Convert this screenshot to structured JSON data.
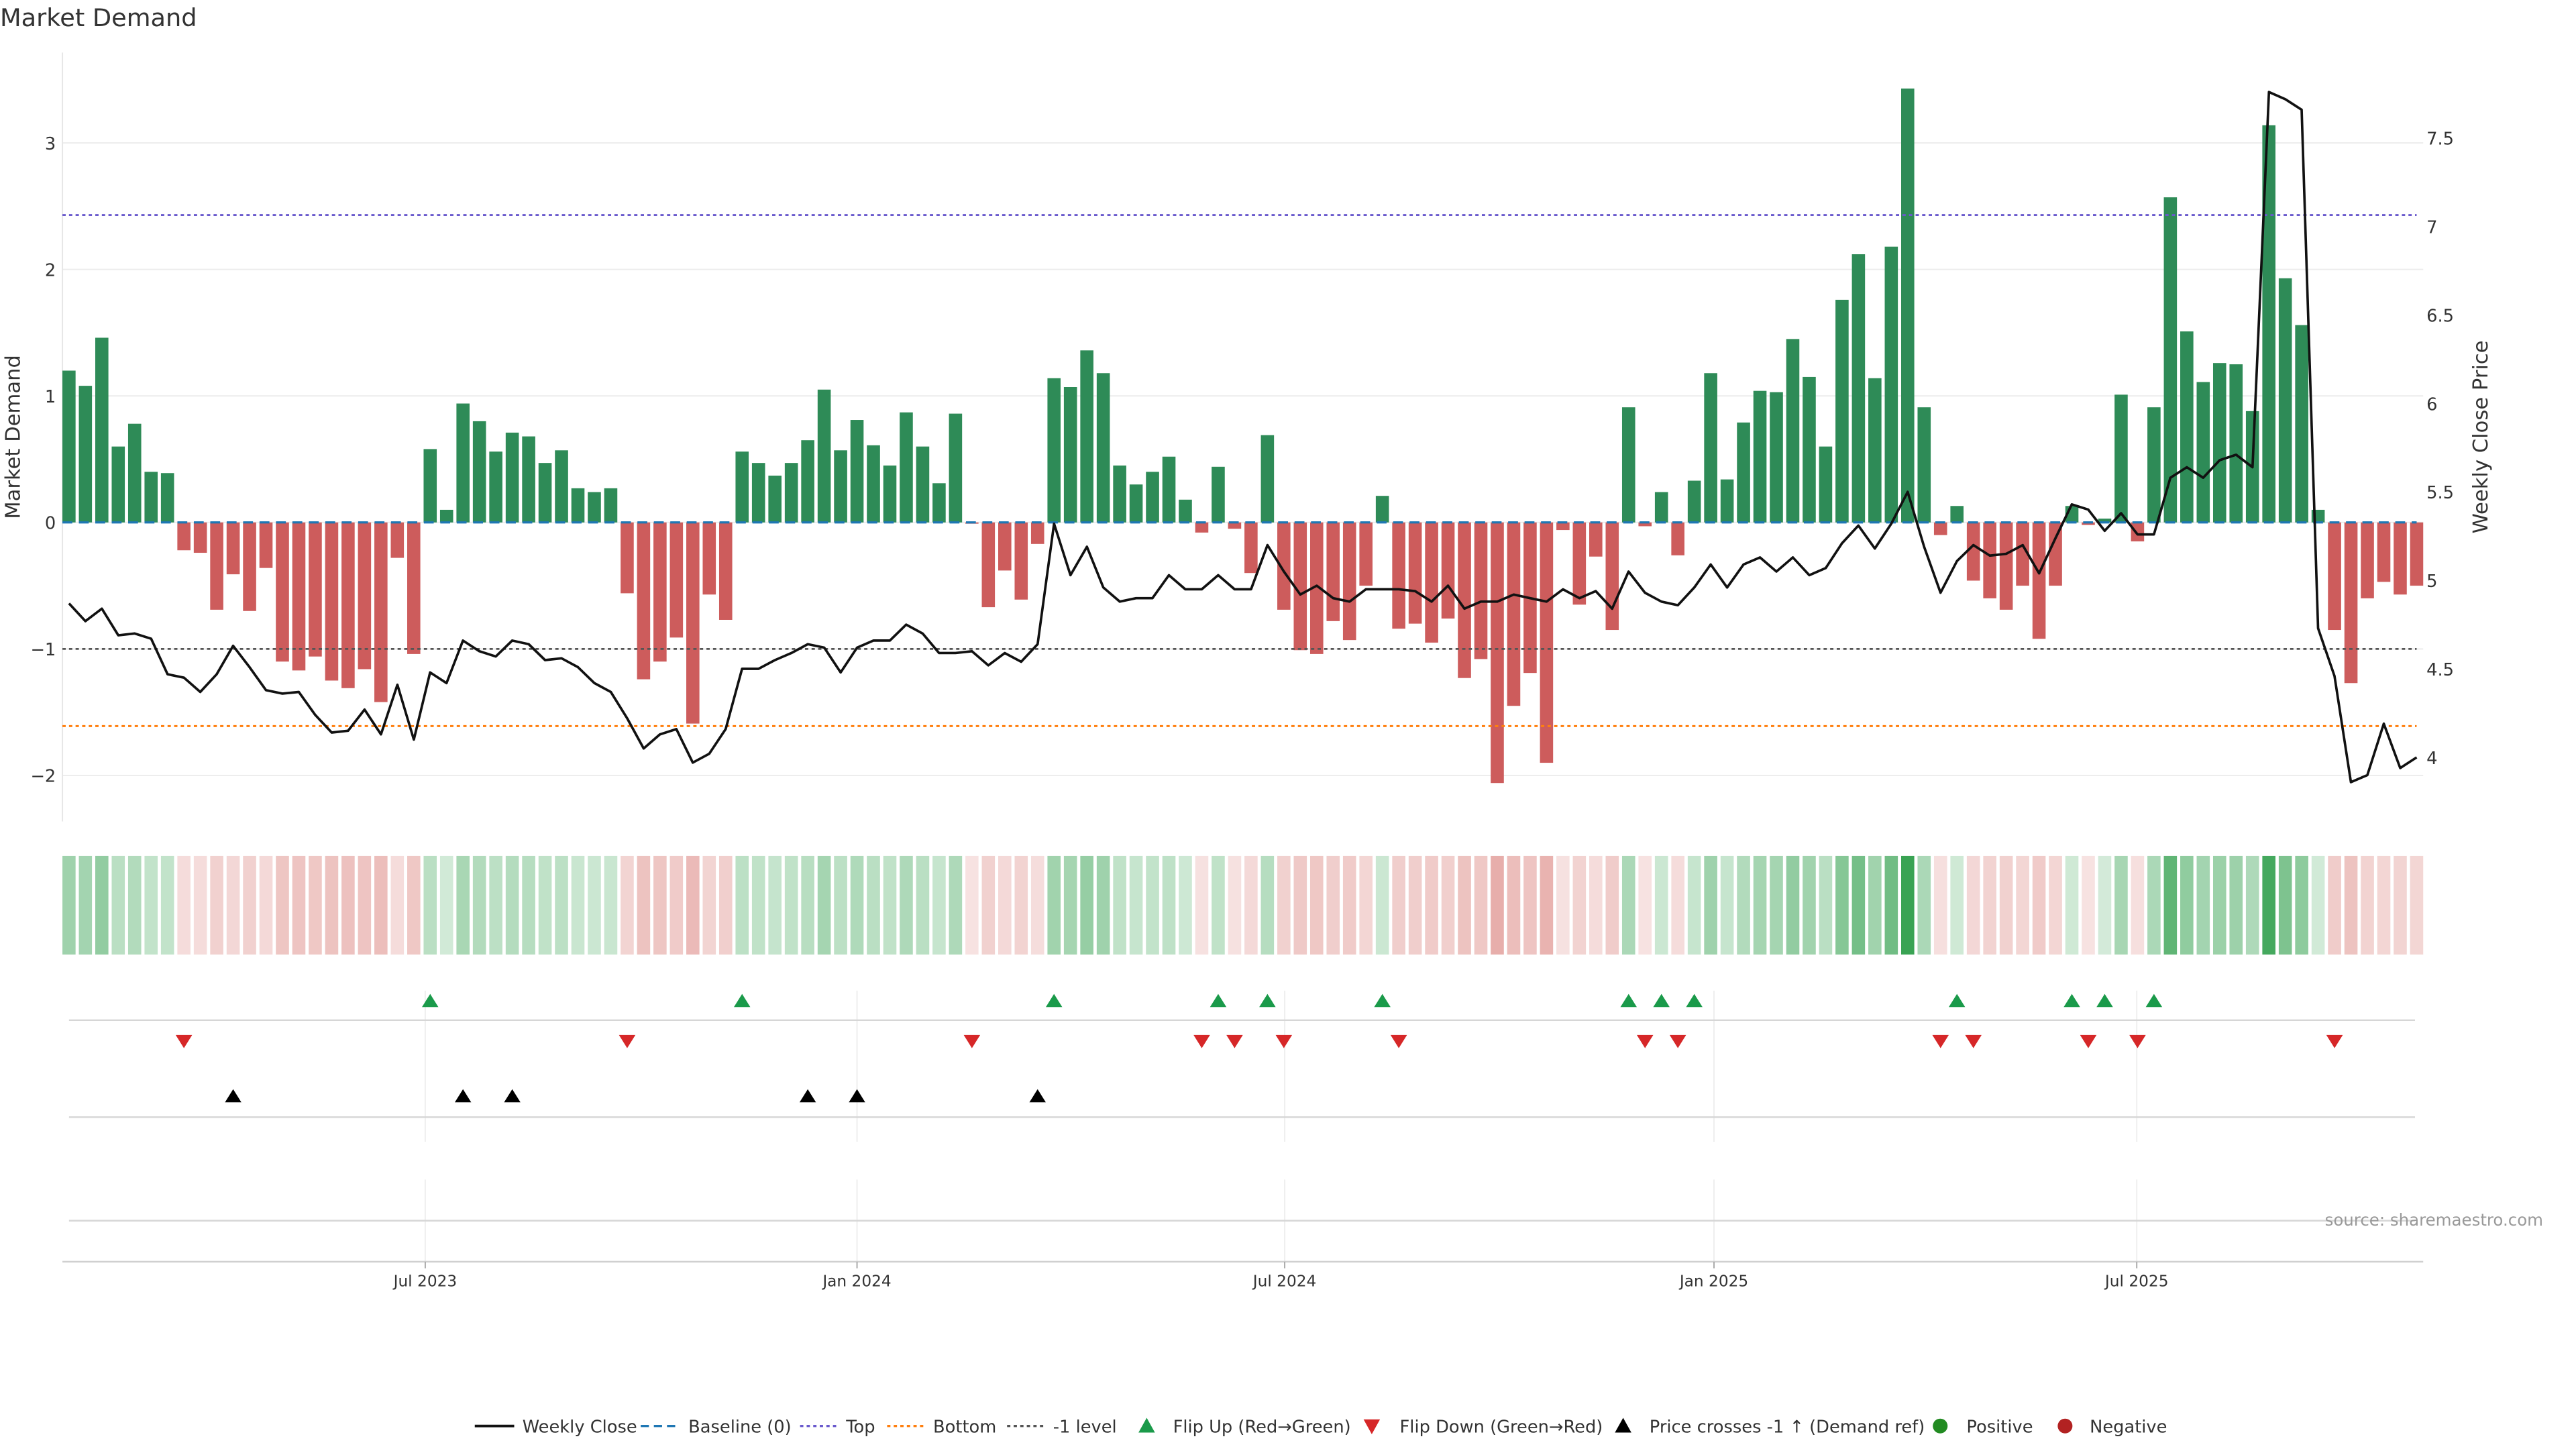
{
  "chart_data": {
    "type": "bar",
    "title": "Market Demand",
    "ylabel": "Market Demand",
    "y2label": "Weekly Close Price",
    "ylim": [
      -2.4,
      3.7
    ],
    "y2lim": [
      3.78,
      8.23
    ],
    "yticks": [
      {
        "v": 3,
        "label": "3"
      },
      {
        "v": 2,
        "label": "2"
      },
      {
        "v": 1,
        "label": "1"
      },
      {
        "v": 0,
        "label": "0"
      },
      {
        "v": -1,
        "label": "−1"
      },
      {
        "v": -2,
        "label": "−2"
      }
    ],
    "y2ticks": [
      {
        "v": 7.5,
        "label": "7.5"
      },
      {
        "v": 7,
        "label": "7"
      },
      {
        "v": 6.5,
        "label": "6.5"
      },
      {
        "v": 6,
        "label": "6"
      },
      {
        "v": 5.5,
        "label": "5.5"
      },
      {
        "v": 5,
        "label": "5"
      },
      {
        "v": 4.5,
        "label": "4.5"
      },
      {
        "v": 4,
        "label": "4"
      }
    ],
    "xticks": [
      {
        "index": 21.7,
        "label": "Jul 2023"
      },
      {
        "index": 48.0,
        "label": "Jan 2024"
      },
      {
        "index": 74.05,
        "label": "Jul 2024"
      },
      {
        "index": 100.2,
        "label": "Jan 2025"
      },
      {
        "index": 125.95,
        "label": "Jul 2025"
      }
    ],
    "levels": {
      "baseline": 0,
      "top": 2.43,
      "bottom": -1.61,
      "minus_one": -1
    },
    "demand": [
      1.2,
      1.08,
      1.46,
      0.6,
      0.78,
      0.4,
      0.39,
      -0.22,
      -0.24,
      -0.69,
      -0.41,
      -0.7,
      -0.36,
      -1.1,
      -1.17,
      -1.06,
      -1.25,
      -1.31,
      -1.16,
      -1.42,
      -0.28,
      -1.04,
      0.58,
      0.1,
      0.94,
      0.8,
      0.56,
      0.71,
      0.68,
      0.47,
      0.57,
      0.27,
      0.24,
      0.27,
      -0.56,
      -1.24,
      -1.1,
      -0.91,
      -1.59,
      -0.57,
      -0.77,
      0.56,
      0.47,
      0.37,
      0.47,
      0.65,
      1.05,
      0.57,
      0.81,
      0.61,
      0.45,
      0.87,
      0.6,
      0.31,
      0.86,
      -0.01,
      -0.67,
      -0.38,
      -0.61,
      -0.17,
      1.14,
      1.07,
      1.36,
      1.18,
      0.45,
      0.3,
      0.4,
      0.52,
      0.18,
      -0.08,
      0.44,
      -0.05,
      -0.4,
      0.69,
      -0.69,
      -1.01,
      -1.04,
      -0.78,
      -0.93,
      -0.5,
      0.21,
      -0.84,
      -0.8,
      -0.95,
      -0.76,
      -1.23,
      -1.08,
      -2.06,
      -1.45,
      -1.19,
      -1.9,
      -0.06,
      -0.65,
      -0.27,
      -0.85,
      0.91,
      -0.03,
      0.24,
      -0.26,
      0.33,
      1.18,
      0.34,
      0.79,
      1.04,
      1.03,
      1.45,
      1.15,
      0.6,
      1.76,
      2.12,
      1.14,
      2.18,
      3.43,
      0.91,
      -0.1,
      0.13,
      -0.46,
      -0.6,
      -0.69,
      -0.5,
      -0.92,
      -0.5,
      0.13,
      -0.02,
      0.03,
      1.01,
      -0.15,
      0.91,
      2.57,
      1.51,
      1.11,
      1.26,
      1.25,
      0.88,
      3.14,
      1.93,
      1.56,
      0.1,
      -0.85,
      -1.27,
      -0.6,
      -0.47,
      -0.57,
      -0.5
    ],
    "weekly_close": [
      4.87,
      4.77,
      4.84,
      4.69,
      4.7,
      4.67,
      4.47,
      4.45,
      4.37,
      4.47,
      4.63,
      4.51,
      4.38,
      4.36,
      4.37,
      4.24,
      4.14,
      4.15,
      4.27,
      4.13,
      4.41,
      4.1,
      4.48,
      4.42,
      4.66,
      4.6,
      4.57,
      4.66,
      4.64,
      4.55,
      4.56,
      4.51,
      4.42,
      4.37,
      4.22,
      4.05,
      4.13,
      4.16,
      3.97,
      4.02,
      4.16,
      4.5,
      4.5,
      4.55,
      4.59,
      4.64,
      4.62,
      4.48,
      4.62,
      4.66,
      4.66,
      4.75,
      4.7,
      4.59,
      4.59,
      4.6,
      4.52,
      4.59,
      4.54,
      4.64,
      5.32,
      5.03,
      5.19,
      4.96,
      4.88,
      4.9,
      4.9,
      5.03,
      4.95,
      4.95,
      5.03,
      4.95,
      4.95,
      5.2,
      5.05,
      4.92,
      4.97,
      4.9,
      4.88,
      4.95,
      4.95,
      4.95,
      4.94,
      4.88,
      4.97,
      4.84,
      4.88,
      4.88,
      4.92,
      4.9,
      4.88,
      4.95,
      4.9,
      4.94,
      4.84,
      5.05,
      4.93,
      4.88,
      4.86,
      4.96,
      5.09,
      4.96,
      5.09,
      5.13,
      5.05,
      5.13,
      5.03,
      5.07,
      5.21,
      5.31,
      5.18,
      5.32,
      5.5,
      5.19,
      4.93,
      5.11,
      5.2,
      5.14,
      5.15,
      5.2,
      5.04,
      5.24,
      5.43,
      5.4,
      5.28,
      5.38,
      5.26,
      5.26,
      5.58,
      5.64,
      5.58,
      5.68,
      5.71,
      5.64,
      7.76,
      7.72,
      7.66,
      4.73,
      4.46,
      3.86,
      3.9,
      4.19,
      3.94,
      4.0
    ],
    "flip_up_indices": [
      22,
      41,
      60,
      70,
      73,
      80,
      95,
      97,
      99,
      115,
      122,
      124,
      127
    ],
    "flip_down_indices": [
      7,
      34,
      55,
      69,
      71,
      74,
      81,
      96,
      98,
      114,
      116,
      123,
      126,
      138
    ],
    "price_cross_up_indices": [
      10,
      24,
      27,
      45,
      48,
      59
    ],
    "legend": [
      {
        "key": "weekly_close",
        "label": "Weekly Close"
      },
      {
        "key": "baseline",
        "label": "Baseline (0)"
      },
      {
        "key": "top",
        "label": "Top"
      },
      {
        "key": "bottom",
        "label": "Bottom"
      },
      {
        "key": "minus_one",
        "label": "-1 level"
      },
      {
        "key": "flip_up",
        "label": "Flip Up (Red→Green)"
      },
      {
        "key": "flip_down",
        "label": "Flip Down (Green→Red)"
      },
      {
        "key": "price_cross",
        "label": "Price crosses -1 ↑ (Demand ref)"
      },
      {
        "key": "positive",
        "label": "Positive"
      },
      {
        "key": "negative",
        "label": "Negative"
      }
    ],
    "legend_placement": "bottom-center",
    "source": "source: sharemaestro.com"
  },
  "colors": {
    "positive_bar": "#2e8b57",
    "negative_bar": "#cd5c5c",
    "price_line": "#111111",
    "baseline": "#1f77b4",
    "top": "#6a5acd",
    "bottom": "#ff7f0e",
    "minus_one": "#555555",
    "flip_up": "#1a9a4a",
    "flip_down": "#d62728",
    "price_cross": "#000000",
    "positive_dot": "#228b22",
    "negative_dot": "#b22222",
    "heat_green": "#2e9e4a",
    "heat_red": "#d0605a"
  }
}
